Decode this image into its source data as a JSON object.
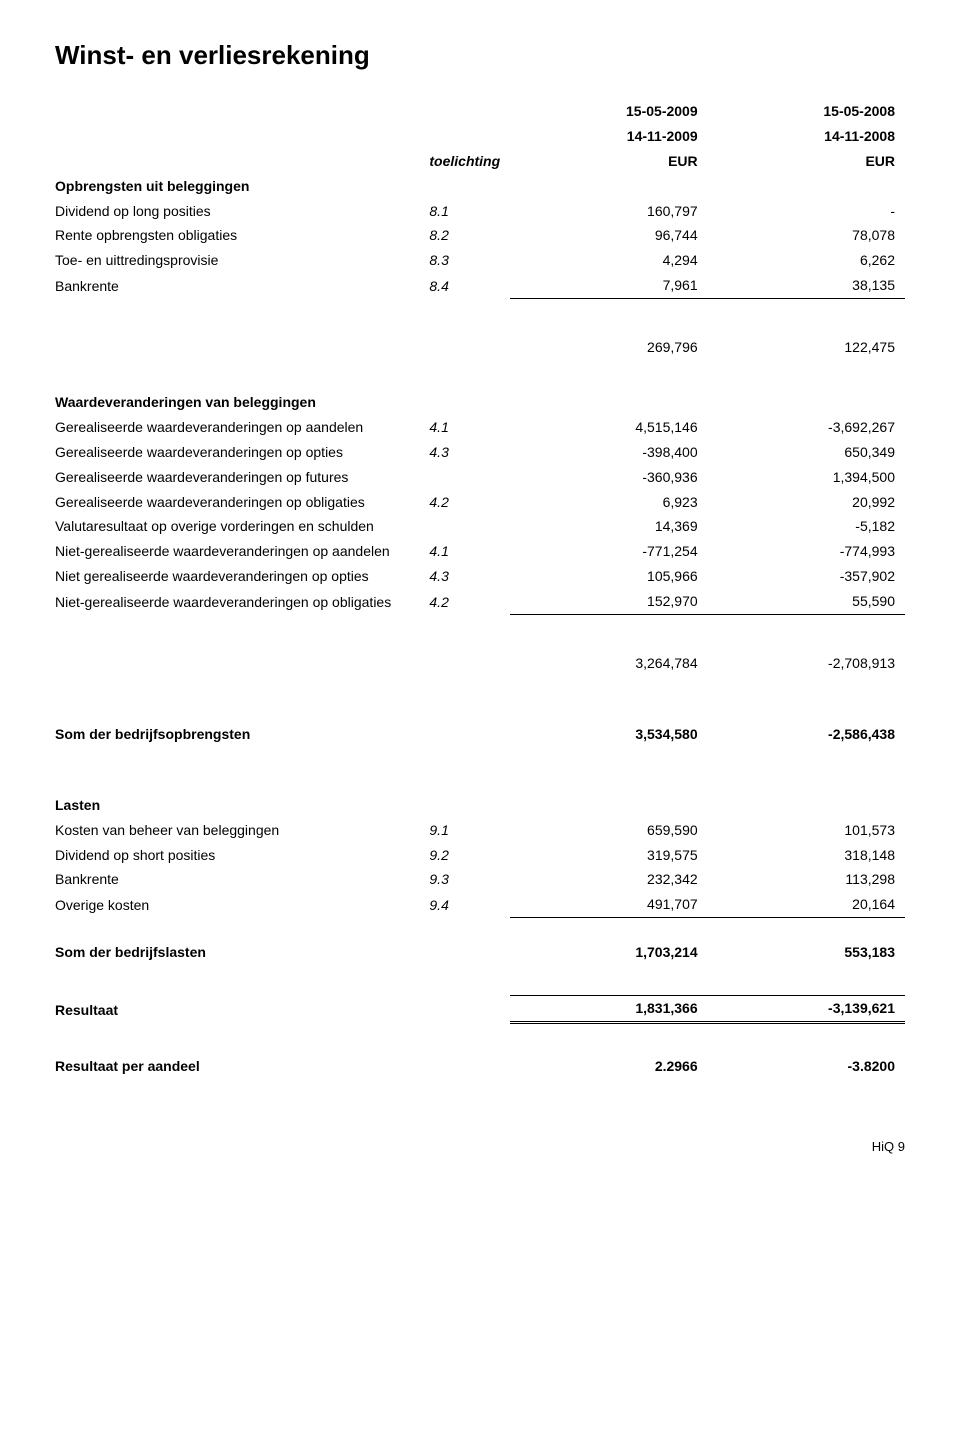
{
  "title": "Winst- en verliesrekening",
  "headers": {
    "note_label": "toelichting",
    "period1_line1": "15-05-2009",
    "period1_line2": "14-11-2009",
    "period1_unit": "EUR",
    "period2_line1": "15-05-2008",
    "period2_line2": "14-11-2008",
    "period2_unit": "EUR"
  },
  "sections": {
    "opbrengsten": {
      "heading": "Opbrengsten uit beleggingen",
      "rows": [
        {
          "label": "Dividend op long posities",
          "note": "8.1",
          "v1": "160,797",
          "v2": "-"
        },
        {
          "label": "Rente opbrengsten obligaties",
          "note": "8.2",
          "v1": "96,744",
          "v2": "78,078"
        },
        {
          "label": "Toe- en uittredingsprovisie",
          "note": "8.3",
          "v1": "4,294",
          "v2": "6,262"
        },
        {
          "label": "Bankrente",
          "note": "8.4",
          "v1": "7,961",
          "v2": "38,135"
        }
      ],
      "subtotal": {
        "v1": "269,796",
        "v2": "122,475"
      }
    },
    "waardeveranderingen": {
      "heading": "Waardeveranderingen van beleggingen",
      "rows": [
        {
          "label": "Gerealiseerde waardeveranderingen op aandelen",
          "note": "4.1",
          "v1": "4,515,146",
          "v2": "-3,692,267"
        },
        {
          "label": "Gerealiseerde waardeveranderingen op opties",
          "note": "4.3",
          "v1": "-398,400",
          "v2": "650,349"
        },
        {
          "label": "Gerealiseerde waardeveranderingen op futures",
          "note": "",
          "v1": "-360,936",
          "v2": "1,394,500"
        },
        {
          "label": "Gerealiseerde waardeveranderingen op obligaties",
          "note": "4.2",
          "v1": "6,923",
          "v2": "20,992"
        },
        {
          "label": "Valutaresultaat op overige vorderingen en schulden",
          "note": "",
          "v1": "14,369",
          "v2": "-5,182"
        },
        {
          "label": "Niet-gerealiseerde waardeveranderingen op aandelen",
          "note": "4.1",
          "v1": "-771,254",
          "v2": "-774,993"
        },
        {
          "label": "Niet gerealiseerde waardeveranderingen op opties",
          "note": "4.3",
          "v1": "105,966",
          "v2": "-357,902"
        },
        {
          "label": "Niet-gerealiseerde waardeveranderingen op obligaties",
          "note": "4.2",
          "v1": "152,970",
          "v2": "55,590"
        }
      ],
      "subtotal": {
        "v1": "3,264,784",
        "v2": "-2,708,913"
      }
    },
    "som_opbrengsten": {
      "label": "Som der bedrijfsopbrengsten",
      "v1": "3,534,580",
      "v2": "-2,586,438"
    },
    "lasten": {
      "heading": "Lasten",
      "rows": [
        {
          "label": "Kosten van beheer van beleggingen",
          "note": "9.1",
          "v1": "659,590",
          "v2": "101,573"
        },
        {
          "label": "Dividend op short posities",
          "note": "9.2",
          "v1": "319,575",
          "v2": "318,148"
        },
        {
          "label": "Bankrente",
          "note": "9.3",
          "v1": "232,342",
          "v2": "113,298"
        },
        {
          "label": "Overige kosten",
          "note": "9.4",
          "v1": "491,707",
          "v2": "20,164"
        }
      ]
    },
    "som_lasten": {
      "label": "Som der bedrijfslasten",
      "v1": "1,703,214",
      "v2": "553,183"
    },
    "resultaat": {
      "label": "Resultaat",
      "v1": "1,831,366",
      "v2": "-3,139,621"
    },
    "resultaat_per_aandeel": {
      "label": "Resultaat per aandeel",
      "v1": "2.2966",
      "v2": "-3.8200"
    }
  },
  "footer": "HiQ  9"
}
